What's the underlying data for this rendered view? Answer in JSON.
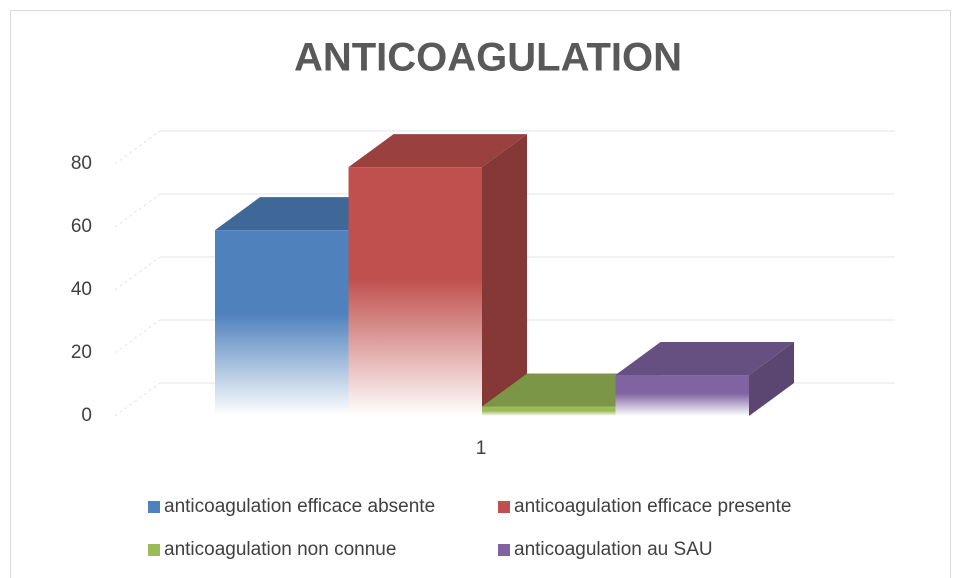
{
  "chart_data": {
    "type": "bar3d",
    "title": "ANTICOAGULATION",
    "categories": [
      "1"
    ],
    "series": [
      {
        "name": "anticoagulation efficace absente",
        "color": "#4f81bd",
        "values": [
          59
        ]
      },
      {
        "name": "anticoagulation efficace presente",
        "color": "#c0504d",
        "values": [
          79
        ]
      },
      {
        "name": "anticoagulation non connue",
        "color": "#9bbb59",
        "values": [
          3
        ]
      },
      {
        "name": "anticoagulation au SAU",
        "color": "#8064a2",
        "values": [
          13
        ]
      }
    ],
    "ylim": [
      0,
      80
    ],
    "yticks": [
      0,
      20,
      40,
      60,
      80
    ],
    "grid": true
  }
}
